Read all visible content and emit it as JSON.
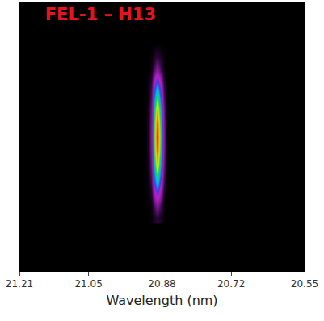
{
  "chart_data": {
    "type": "heatmap",
    "title": "FEL-1 – H13",
    "xlabel": "Wavelength (nm)",
    "x": [
      20.912,
      20.905,
      20.898,
      20.891,
      20.884,
      20.877,
      20.87
    ],
    "y": [
      20,
      25,
      30,
      35,
      40,
      45,
      50,
      55,
      60,
      65,
      70,
      75,
      80,
      85
    ],
    "z": [
      [
        0,
        1,
        3,
        5,
        3,
        1,
        0
      ],
      [
        0,
        2,
        8,
        15,
        8,
        2,
        0
      ],
      [
        1,
        5,
        19,
        35,
        19,
        5,
        1
      ],
      [
        1,
        9,
        33,
        60,
        33,
        9,
        1
      ],
      [
        2,
        12,
        44,
        80,
        44,
        12,
        2
      ],
      [
        2,
        14,
        52,
        95,
        52,
        14,
        2
      ],
      [
        2,
        15,
        55,
        100,
        55,
        15,
        2
      ],
      [
        2,
        14,
        52,
        95,
        52,
        14,
        2
      ],
      [
        2,
        12,
        45,
        82,
        45,
        12,
        2
      ],
      [
        1,
        9,
        34,
        62,
        34,
        9,
        1
      ],
      [
        1,
        6,
        21,
        38,
        21,
        6,
        1
      ],
      [
        0,
        2,
        8,
        15,
        8,
        2,
        0
      ],
      [
        0,
        1,
        3,
        5,
        3,
        1,
        0
      ],
      [
        0,
        0,
        0,
        0,
        0,
        0,
        0
      ]
    ],
    "zlim": [
      0,
      100
    ],
    "xlim": [
      21.21,
      20.55
    ],
    "xticks": [
      21.21,
      21.05,
      20.88,
      20.72,
      20.55
    ],
    "ylim": [
      0,
      100
    ],
    "tick_labels": "x"
  }
}
